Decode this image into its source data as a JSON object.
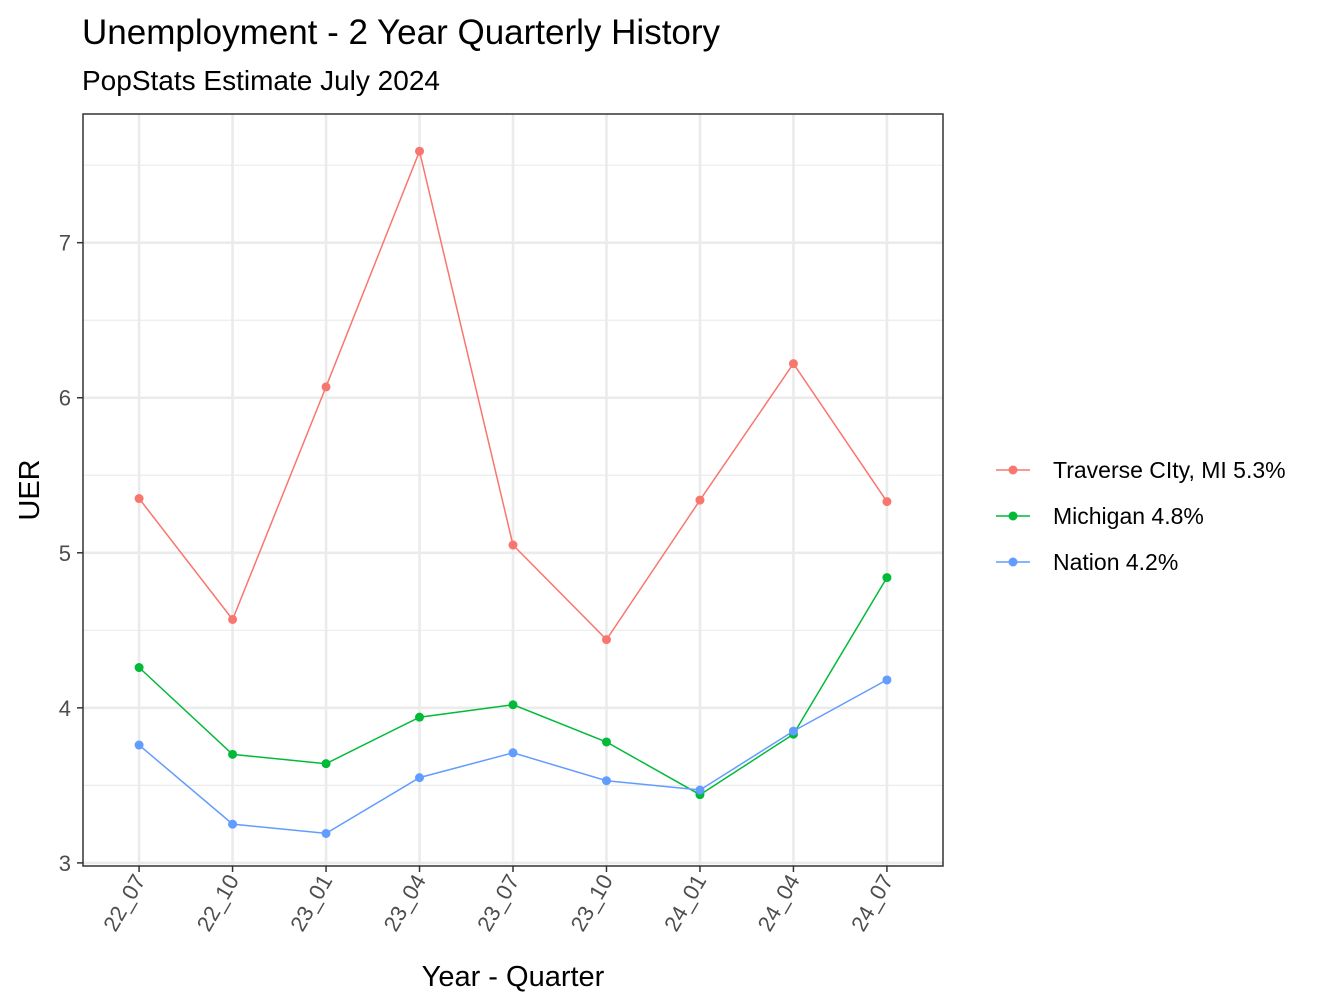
{
  "chart_data": {
    "type": "line",
    "title": "Unemployment - 2 Year Quarterly History",
    "subtitle": "PopStats Estimate July 2024",
    "xlabel": "Year - Quarter",
    "ylabel": "UER",
    "categories": [
      "22_07",
      "22_10",
      "23_01",
      "23_04",
      "23_07",
      "23_10",
      "24_01",
      "24_04",
      "24_07"
    ],
    "ylim": [
      2.98,
      7.83
    ],
    "yticks": [
      3,
      4,
      5,
      6,
      7
    ],
    "grid": true,
    "legend_position": "right",
    "series": [
      {
        "name": "Traverse CIty, MI 5.3%",
        "color": "#F8766D",
        "values": [
          5.35,
          4.57,
          6.07,
          7.59,
          5.05,
          4.44,
          5.34,
          6.22,
          5.33
        ]
      },
      {
        "name": "Michigan 4.8%",
        "color": "#00BA38",
        "values": [
          4.26,
          3.7,
          3.64,
          3.94,
          4.02,
          3.78,
          3.44,
          3.83,
          4.84
        ]
      },
      {
        "name": "Nation 4.2%",
        "color": "#619CFF",
        "values": [
          3.76,
          3.25,
          3.19,
          3.55,
          3.71,
          3.53,
          3.47,
          3.85,
          4.18
        ]
      }
    ]
  }
}
